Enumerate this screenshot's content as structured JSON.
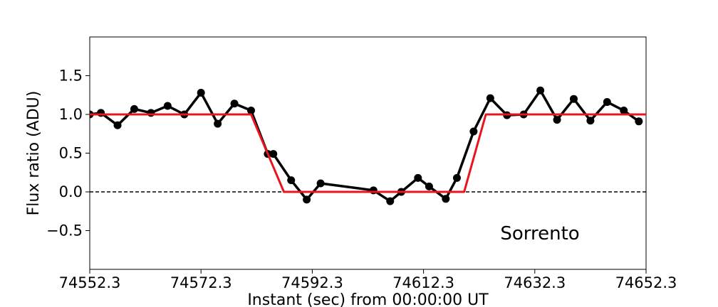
{
  "chart_data": {
    "type": "line",
    "xlabel": "Instant (sec) from 00:00:00 UT",
    "ylabel": "Flux ratio (ADU)",
    "xlim": [
      74552.3,
      74652.3
    ],
    "ylim": [
      -1.0,
      2.0
    ],
    "xticks": [
      74552.3,
      74572.3,
      74592.3,
      74612.3,
      74632.3,
      74652.3
    ],
    "xtick_labels": [
      "74552.3",
      "74572.3",
      "74592.3",
      "74612.3",
      "74632.3",
      "74652.3"
    ],
    "yticks": [
      -0.5,
      0.0,
      0.5,
      1.0,
      1.5
    ],
    "ytick_labels": [
      "−0.5",
      "0.0",
      "0.5",
      "1.0",
      "1.5"
    ],
    "annotation": "Sorrento",
    "grid": false,
    "series": [
      {
        "color": "#000000",
        "marker": "circle",
        "x": [
          74552.3,
          74554.3,
          74557.3,
          74560.3,
          74563.3,
          74566.3,
          74569.3,
          74572.3,
          74575.3,
          74578.3,
          74581.3,
          74584.3,
          74585.3,
          74588.5,
          74591.3,
          74593.8,
          74603.3,
          74606.3,
          74608.3,
          74611.3,
          74613.3,
          74616.3,
          74618.3,
          74621.3,
          74624.3,
          74627.3,
          74630.3,
          74633.3,
          74636.3,
          74639.3,
          74642.3,
          74645.3,
          74648.3,
          74651.0
        ],
        "y": [
          1.0,
          1.02,
          0.86,
          1.07,
          1.02,
          1.11,
          1.0,
          1.28,
          0.88,
          1.14,
          1.05,
          0.49,
          0.49,
          0.15,
          -0.1,
          0.11,
          0.02,
          -0.12,
          0.0,
          0.18,
          0.07,
          -0.09,
          0.18,
          0.78,
          1.21,
          0.99,
          1.0,
          1.31,
          0.93,
          1.2,
          0.92,
          1.16,
          1.05,
          0.91
        ]
      },
      {
        "color": "#e8141e",
        "marker": "none",
        "x": [
          74552.3,
          74581.3,
          74587.2,
          74619.6,
          74623.5,
          74652.3
        ],
        "y": [
          1.0,
          1.0,
          0.0,
          0.0,
          1.0,
          1.0
        ]
      }
    ],
    "reference_line": {
      "y": 0.0,
      "style": "dashed",
      "color": "#000000"
    }
  }
}
